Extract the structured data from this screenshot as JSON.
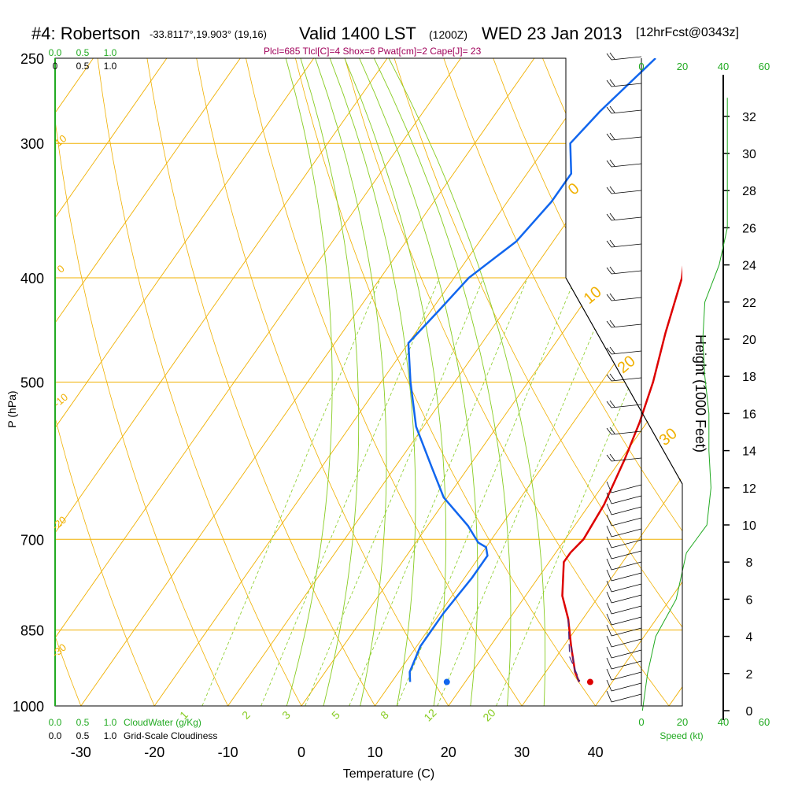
{
  "header": {
    "station": "#4: Robertson",
    "coords": "-33.8117°,19.903° (19,16)",
    "valid": "Valid 1400 LST",
    "zone": "(1200Z)",
    "date": "WED 23 Jan 2013",
    "forecast": "[12hrFcst@0343z]",
    "params": "Plcl=685 Tlcl[C]=4 Shox=6 Pwat[cm]=2 Cape[J]= 23"
  },
  "colors": {
    "temperature": "#dd0000",
    "dewpoint": "#1166ee",
    "isotherm": "#f0b000",
    "mixing_ratio": "#88cc22",
    "cloud": "#22aa22",
    "params": "#a0005a"
  },
  "chart_data": {
    "type": "line",
    "xlabel": "Temperature (C)",
    "ylabel": "P (hPa)",
    "x_ticks": [
      "-30",
      "-20",
      "-10",
      "0",
      "10",
      "20",
      "30",
      "40"
    ],
    "y_ticks": [
      "250",
      "300",
      "400",
      "500",
      "700",
      "850",
      "1000"
    ],
    "xlim": [
      -34,
      45
    ],
    "ylim": [
      1000,
      250
    ],
    "height_label": "Height (1000 Feet)",
    "height_ticks": [
      "0",
      "2",
      "4",
      "6",
      "8",
      "10",
      "12",
      "14",
      "16",
      "18",
      "20",
      "22",
      "24",
      "26",
      "28",
      "30",
      "32"
    ],
    "isotherm_labels": [
      "10",
      "0",
      "-10",
      "-20",
      "-30",
      "0",
      "10",
      "20",
      "30"
    ],
    "mixing_ratio_labels": [
      "1",
      "2",
      "3",
      "5",
      "8",
      "12",
      "20"
    ],
    "cloud_scale": [
      "0.0",
      "0.5",
      "1.0"
    ],
    "cloudwater_label": "CloudWater (g/Kg)",
    "cloudiness_label": "Grid-Scale Cloudiness",
    "speed_ticks": [
      "0",
      "20",
      "40",
      "60"
    ],
    "speed_label": "Speed (kt)",
    "series": [
      {
        "points": [
          [
            35.5,
            950
          ],
          [
            34,
            930
          ],
          [
            31,
            880
          ],
          [
            28,
            830
          ],
          [
            25,
            790
          ],
          [
            22,
            735
          ],
          [
            22,
            720
          ],
          [
            22.5,
            700
          ],
          [
            22,
            650
          ],
          [
            20.5,
            590
          ],
          [
            19,
            545
          ],
          [
            17,
            500
          ],
          [
            14,
            450
          ],
          [
            11,
            400
          ],
          [
            6,
            350
          ],
          [
            3,
            300
          ],
          [
            0,
            250
          ]
        ],
        "surface_marker": [
          37.0,
          950
        ]
      },
      {
        "points": [
          [
            12.5,
            950
          ],
          [
            11.5,
            930
          ],
          [
            10.5,
            880
          ],
          [
            10.5,
            820
          ],
          [
            11,
            760
          ],
          [
            11,
            725
          ],
          [
            10,
            712
          ],
          [
            8.5,
            705
          ],
          [
            5.5,
            680
          ],
          [
            -0.5,
            640
          ],
          [
            -5,
            600
          ],
          [
            -11,
            550
          ],
          [
            -16,
            500
          ],
          [
            -20,
            460
          ],
          [
            -19,
            430
          ],
          [
            -18,
            400
          ],
          [
            -15,
            370
          ],
          [
            -14,
            340
          ],
          [
            -14,
            320
          ],
          [
            -17,
            300
          ],
          [
            -16,
            280
          ],
          [
            -13.5,
            250
          ]
        ],
        "surface_marker": [
          17.5,
          950
        ]
      }
    ],
    "cloudwater_profile": [
      [
        0.0,
        0.02
      ],
      [
        0.1,
        0.04
      ],
      [
        0.25,
        0.08
      ],
      [
        0.6,
        0.15
      ],
      [
        0.92,
        0.25
      ],
      [
        1.0,
        0.28
      ],
      [
        1.0,
        0.35
      ],
      [
        1.0,
        0.45
      ],
      [
        1.0,
        0.6
      ]
    ],
    "speed_profile": [
      [
        0.5,
        0
      ],
      [
        3,
        2
      ],
      [
        7,
        4
      ],
      [
        17,
        6
      ],
      [
        22,
        8.5
      ],
      [
        32,
        10
      ],
      [
        34,
        12
      ],
      [
        33,
        14
      ],
      [
        33,
        16
      ],
      [
        31,
        18
      ],
      [
        30,
        20
      ],
      [
        31,
        22
      ],
      [
        38,
        24
      ],
      [
        42,
        26
      ],
      [
        42,
        28
      ],
      [
        42,
        33
      ]
    ]
  }
}
